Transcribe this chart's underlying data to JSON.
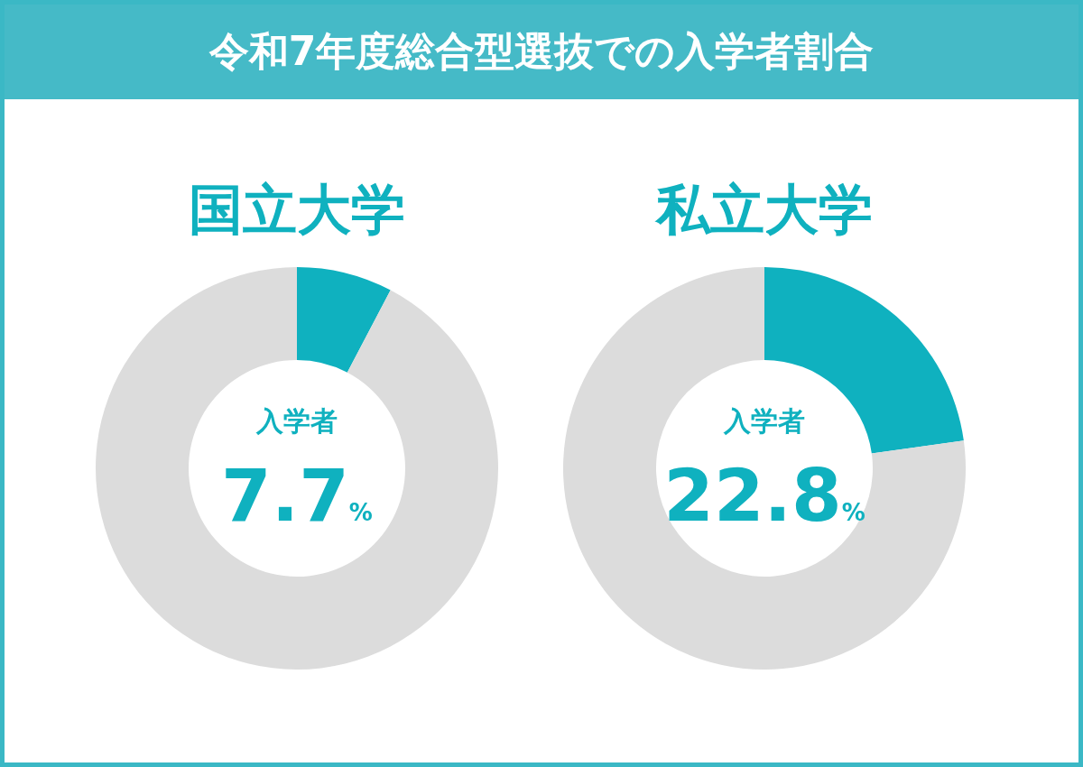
{
  "chart_data": [
    {
      "type": "other",
      "title": "令和7年度総合型選抜での入学者割合"
    },
    {
      "type": "donut",
      "title": "国立大学",
      "categories": [
        "入学者",
        null
      ],
      "values": [
        7.7,
        92.3
      ],
      "colors": [
        "#0fb1bf",
        "#dcdcdc"
      ],
      "value_labels": [
        "7.7%",
        null
      ]
    },
    {
      "type": "donut",
      "title": "私立大学",
      "categories": [
        "入学者",
        null
      ],
      "values": [
        22.8,
        77.2
      ],
      "colors": [
        "#0fb1bf",
        "#dcdcdc"
      ],
      "value_labels": [
        "22.8%",
        null
      ]
    }
  ]
}
